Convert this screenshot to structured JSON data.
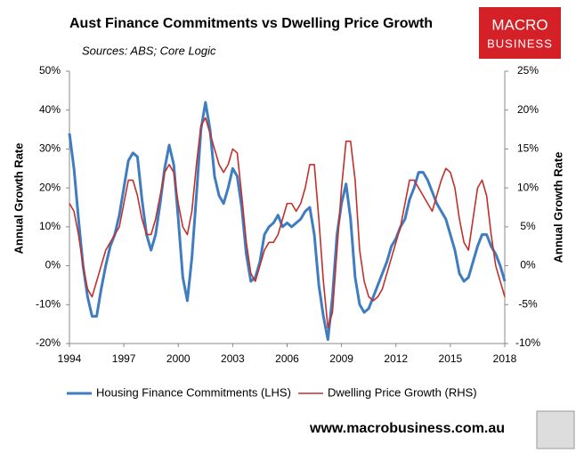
{
  "chart_data": {
    "type": "line",
    "title": "Aust Finance Commitments vs Dwelling Price Growth",
    "subtitle": "Sources: ABS; Core Logic",
    "logo": [
      "MACRO",
      "BUSINESS"
    ],
    "footer": "www.macrobusiness.com.au",
    "ylabel": "Annual Growth Rate",
    "y2label": "Annual Growth Rate",
    "xlim": [
      1994,
      2018
    ],
    "xticks": [
      1994,
      1997,
      2000,
      2003,
      2006,
      2009,
      2012,
      2015,
      2018
    ],
    "ylim": [
      -20,
      50
    ],
    "yticks": [
      {
        "value": -20,
        "label": "-20%"
      },
      {
        "value": -10,
        "label": "-10%"
      },
      {
        "value": 0,
        "label": "0%"
      },
      {
        "value": 10,
        "label": "10%"
      },
      {
        "value": 20,
        "label": "20%"
      },
      {
        "value": 30,
        "label": "30%"
      },
      {
        "value": 40,
        "label": "40%"
      },
      {
        "value": 50,
        "label": "50%"
      }
    ],
    "y2lim": [
      -10,
      25
    ],
    "y2ticks": [
      {
        "value": -10,
        "label": "-10%"
      },
      {
        "value": -5,
        "label": "-5%"
      },
      {
        "value": 0,
        "label": "0%"
      },
      {
        "value": 5,
        "label": "5%"
      },
      {
        "value": 10,
        "label": "10%"
      },
      {
        "value": 15,
        "label": "15%"
      },
      {
        "value": 20,
        "label": "20%"
      },
      {
        "value": 25,
        "label": "25%"
      }
    ],
    "legend": "bottom",
    "x": [
      1994,
      1994.25,
      1994.5,
      1994.75,
      1995,
      1995.25,
      1995.5,
      1995.75,
      1996,
      1996.25,
      1996.5,
      1996.75,
      1997,
      1997.25,
      1997.5,
      1997.75,
      1998,
      1998.25,
      1998.5,
      1998.75,
      1999,
      1999.25,
      1999.5,
      1999.75,
      2000,
      2000.25,
      2000.5,
      2000.75,
      2001,
      2001.25,
      2001.5,
      2001.75,
      2002,
      2002.25,
      2002.5,
      2002.75,
      2003,
      2003.25,
      2003.5,
      2003.75,
      2004,
      2004.25,
      2004.5,
      2004.75,
      2005,
      2005.25,
      2005.5,
      2005.75,
      2006,
      2006.25,
      2006.5,
      2006.75,
      2007,
      2007.25,
      2007.5,
      2007.75,
      2008,
      2008.25,
      2008.5,
      2008.75,
      2009,
      2009.25,
      2009.5,
      2009.75,
      2010,
      2010.25,
      2010.5,
      2010.75,
      2011,
      2011.25,
      2011.5,
      2011.75,
      2012,
      2012.25,
      2012.5,
      2012.75,
      2013,
      2013.25,
      2013.5,
      2013.75,
      2014,
      2014.25,
      2014.5,
      2014.75,
      2015,
      2015.25,
      2015.5,
      2015.75,
      2016,
      2016.25,
      2016.5,
      2016.75,
      2017,
      2017.25,
      2017.5,
      2017.75,
      2018
    ],
    "series": [
      {
        "name": "Housing Finance Commitments (LHS)",
        "color": "#3f7cc0",
        "axis": "y",
        "values": [
          34,
          25,
          12,
          0,
          -8,
          -13,
          -13,
          -6,
          0,
          5,
          8,
          13,
          20,
          27,
          29,
          28,
          17,
          8,
          4,
          8,
          16,
          25,
          31,
          26,
          12,
          -3,
          -9,
          2,
          18,
          35,
          42,
          35,
          23,
          18,
          16,
          20,
          25,
          23,
          15,
          3,
          -4,
          -3,
          1,
          8,
          10,
          11,
          13,
          10,
          11,
          10,
          11,
          12,
          14,
          15,
          8,
          -5,
          -13,
          -19,
          -8,
          8,
          16,
          21,
          12,
          -3,
          -10,
          -12,
          -11,
          -8,
          -5,
          -2,
          1,
          5,
          7,
          10,
          12,
          17,
          20,
          24,
          24,
          22,
          19,
          16,
          14,
          12,
          8,
          4,
          -2,
          -4,
          -3,
          1,
          5,
          8,
          8,
          5,
          3,
          0,
          -4
        ]
      },
      {
        "name": "Dwelling Price Growth (RHS)",
        "color": "#c0302c",
        "axis": "y2",
        "values": [
          8,
          7,
          4,
          0,
          -3,
          -4,
          -2,
          0,
          2,
          3,
          4,
          5,
          8,
          11,
          11,
          9,
          6,
          4,
          4,
          6,
          9,
          12,
          13,
          12,
          8,
          5,
          4,
          7,
          13,
          18,
          19,
          17,
          15,
          13,
          12,
          13,
          15,
          14.5,
          9,
          3,
          -1,
          -2,
          0,
          2,
          3,
          3,
          4,
          6,
          8,
          8,
          7,
          8,
          10,
          13,
          13,
          6,
          -2,
          -8,
          -6,
          2,
          10,
          16,
          16,
          11,
          2,
          -2,
          -4,
          -4.5,
          -4,
          -3,
          -1,
          1,
          3,
          5,
          8,
          11,
          11,
          10,
          9,
          8,
          7,
          9,
          11,
          12.5,
          12,
          10,
          6,
          3,
          2,
          6,
          10,
          11,
          9,
          4,
          0,
          -2,
          -4
        ]
      }
    ]
  }
}
